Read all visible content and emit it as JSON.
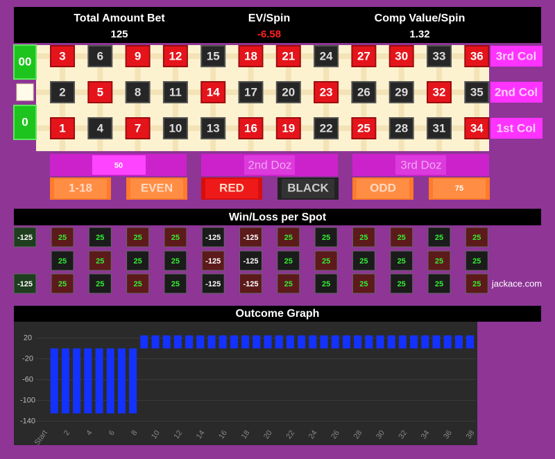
{
  "header": {
    "items": [
      {
        "label": "Total Amount Bet",
        "value": 125,
        "color": "#ffffff"
      },
      {
        "label": "EV/Spin",
        "value": -6.58,
        "color": "#ff2020"
      },
      {
        "label": "Comp Value/Spin",
        "value": 1.32,
        "color": "#ffffff"
      }
    ]
  },
  "table": {
    "zeros": [
      "00",
      "0"
    ],
    "numbers": [
      [
        3,
        6,
        9,
        12,
        15,
        18,
        21,
        24,
        27,
        30,
        33,
        36
      ],
      [
        2,
        5,
        8,
        11,
        14,
        17,
        20,
        23,
        26,
        29,
        32,
        35
      ],
      [
        1,
        4,
        7,
        10,
        13,
        16,
        19,
        22,
        25,
        28,
        31,
        34
      ]
    ],
    "colors": [
      [
        "red",
        "black",
        "red",
        "red",
        "black",
        "red",
        "red",
        "black",
        "red",
        "red",
        "black",
        "red"
      ],
      [
        "black",
        "red",
        "black",
        "black",
        "red",
        "black",
        "black",
        "red",
        "black",
        "black",
        "red",
        "black"
      ],
      [
        "red",
        "black",
        "red",
        "black",
        "black",
        "red",
        "red",
        "black",
        "red",
        "black",
        "black",
        "red"
      ]
    ],
    "column_labels": [
      "3rd Col",
      "2nd Col",
      "1st Col"
    ],
    "dozens": [
      {
        "bet": 50
      },
      {
        "label": "2nd Doz"
      },
      {
        "label": "3rd Doz"
      }
    ],
    "outside": [
      {
        "label": "1-18"
      },
      {
        "label": "EVEN"
      },
      {
        "label": "RED"
      },
      {
        "label": "BLACK"
      },
      {
        "label": "ODD"
      },
      {
        "bet": 75
      }
    ]
  },
  "winloss": {
    "title": "Win/Loss per Spot",
    "zeros": [
      -125,
      -125
    ],
    "values": [
      [
        25,
        25,
        25,
        25,
        -125,
        -125,
        25,
        25,
        25,
        25,
        25,
        25
      ],
      [
        25,
        25,
        25,
        25,
        -125,
        -125,
        25,
        25,
        25,
        25,
        25,
        25
      ],
      [
        25,
        25,
        25,
        25,
        -125,
        -125,
        25,
        25,
        25,
        25,
        25,
        25
      ]
    ],
    "footer": "jackace.com"
  },
  "chart_data": {
    "type": "bar",
    "title": "Outcome Graph",
    "categories": [
      "Start",
      null,
      "2",
      null,
      "4",
      null,
      "6",
      null,
      "8",
      null,
      "10",
      null,
      "12",
      null,
      "14",
      null,
      "16",
      null,
      "18",
      null,
      "20",
      null,
      "22",
      null,
      "24",
      null,
      "26",
      null,
      "28",
      null,
      "30",
      null,
      "32",
      null,
      "34",
      null,
      "36",
      null,
      "38"
    ],
    "values": [
      null,
      -125,
      -125,
      -125,
      -125,
      -125,
      -125,
      -125,
      -125,
      25,
      25,
      25,
      25,
      25,
      25,
      25,
      25,
      25,
      25,
      25,
      25,
      25,
      25,
      25,
      25,
      25,
      25,
      25,
      25,
      25,
      25,
      25,
      25,
      25,
      25,
      25,
      25,
      25,
      25
    ],
    "color": "#1432ff",
    "ylim": [
      -150,
      30
    ],
    "yticks": [
      20,
      -20,
      -60,
      -100,
      -140
    ],
    "grid": true
  }
}
